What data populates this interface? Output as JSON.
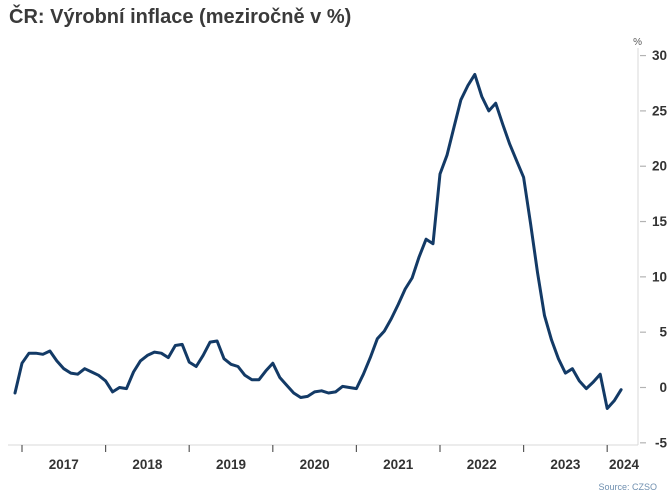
{
  "title": "ČR: Výrobní inflace (meziročně v %)",
  "source": "Source: CZSO",
  "colors": {
    "line": "#133a66",
    "title_text": "#3a3a3a",
    "axis_line": "#d9d9d9",
    "x_tick": "#595959",
    "y_tick": "#b3b3b3",
    "axis_label": "#333333",
    "unit_label": "#595959",
    "source_text": "#7090b0"
  },
  "chart_data": {
    "type": "line",
    "title": "ČR: Výrobní inflace (meziročně v %)",
    "xlabel": "",
    "ylabel": "%",
    "unit": "%",
    "legend": "none",
    "grid": "off",
    "y_axis_side": "right",
    "ylim": [
      -5,
      30
    ],
    "y_ticks": [
      -5,
      0,
      5,
      10,
      15,
      20,
      25,
      30
    ],
    "x_tick_years": [
      2017,
      2018,
      2019,
      2020,
      2021,
      2022,
      2023,
      2024
    ],
    "frequency": "monthly",
    "series_name": "Czech producer price inflation, year-over-year %",
    "points_start": "2016-12",
    "points_end": "2024-03",
    "values": [
      -0.5,
      2.2,
      3.1,
      3.1,
      3.0,
      3.3,
      2.4,
      1.7,
      1.3,
      1.2,
      1.7,
      1.4,
      1.1,
      0.6,
      -0.4,
      0.0,
      -0.1,
      1.4,
      2.4,
      2.9,
      3.2,
      3.1,
      2.7,
      3.8,
      3.9,
      2.3,
      1.9,
      2.9,
      4.1,
      4.2,
      2.6,
      2.1,
      1.9,
      1.1,
      0.7,
      0.7,
      1.5,
      2.2,
      0.9,
      0.2,
      -0.5,
      -0.9,
      -0.8,
      -0.4,
      -0.3,
      -0.5,
      -0.4,
      0.1,
      0.0,
      -0.1,
      1.2,
      2.7,
      4.4,
      5.1,
      6.2,
      7.5,
      8.9,
      9.9,
      11.8,
      13.4,
      13.0,
      19.3,
      21.0,
      23.5,
      26.0,
      27.3,
      28.3,
      26.3,
      25.0,
      25.7,
      23.8,
      22.0,
      20.5,
      19.0,
      14.8,
      10.4,
      6.5,
      4.3,
      2.6,
      1.3,
      1.7,
      0.6,
      -0.1,
      0.5,
      1.2,
      -1.9,
      -1.2,
      -0.2
    ]
  }
}
